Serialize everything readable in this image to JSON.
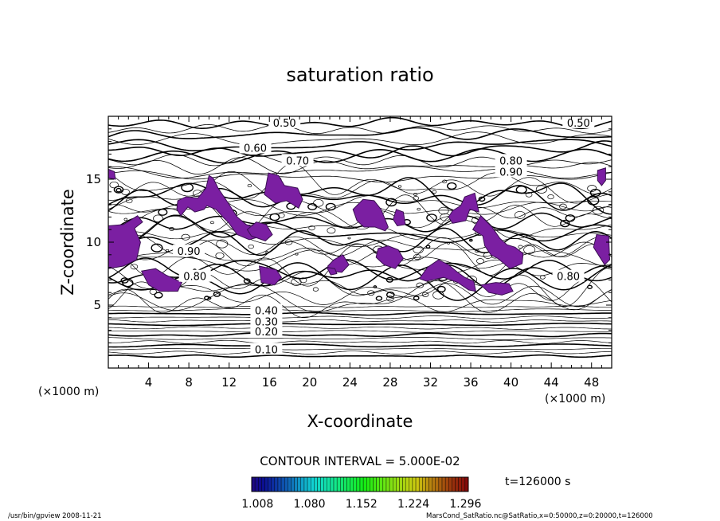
{
  "chart_data": {
    "type": "contour",
    "title": "saturation ratio",
    "xlabel": "X-coordinate",
    "ylabel": "Z-coordinate",
    "x_unit_label": "(×1000 m)",
    "y_unit_label": "(×1000 m)",
    "xlim": [
      0,
      50
    ],
    "ylim": [
      0,
      20
    ],
    "x_ticks": [
      4,
      8,
      12,
      16,
      20,
      24,
      28,
      32,
      36,
      40,
      44,
      48
    ],
    "y_ticks": [
      5,
      10,
      15
    ],
    "contour_interval_text": "CONTOUR INTERVAL = 5.000E-02",
    "time_label": "t=126000 s",
    "colorbar_ticks": [
      "1.008",
      "1.080",
      "1.152",
      "1.224",
      "1.296"
    ],
    "colorbar_range": [
      1.0,
      1.3
    ],
    "contour_labels": [
      {
        "text": "0.10",
        "x": 15.7,
        "z": 1.5
      },
      {
        "text": "0.20",
        "x": 15.7,
        "z": 2.9
      },
      {
        "text": "0.30",
        "x": 15.7,
        "z": 3.7
      },
      {
        "text": "0.40",
        "x": 15.7,
        "z": 4.6
      },
      {
        "text": "0.50",
        "x": 17.5,
        "z": 19.5
      },
      {
        "text": "0.50",
        "x": 46.7,
        "z": 19.5
      },
      {
        "text": "0.60",
        "x": 14.6,
        "z": 17.5
      },
      {
        "text": "0.70",
        "x": 18.8,
        "z": 16.5
      },
      {
        "text": "0.80",
        "x": 40.0,
        "z": 16.5
      },
      {
        "text": "0.90",
        "x": 40.0,
        "z": 15.6
      },
      {
        "text": "0.90",
        "x": 8.0,
        "z": 9.3
      },
      {
        "text": "0.80",
        "x": 8.6,
        "z": 7.3
      },
      {
        "text": "0.80",
        "x": 45.7,
        "z": 7.3
      }
    ],
    "supersaturated_regions": [
      {
        "x": [
          0.0,
          1.5,
          2.8,
          3.2,
          2.6,
          3.4,
          2.9,
          1.5,
          0.0
        ],
        "z": [
          7.9,
          8.1,
          8.6,
          10.0,
          11.1,
          11.6,
          12.1,
          11.4,
          11.3
        ]
      },
      {
        "x": [
          6.9,
          7.7,
          8.9,
          9.7,
          10.0,
          10.4,
          10.9,
          12.0,
          12.8,
          13.7,
          14.7,
          14.9,
          14.0,
          12.8,
          11.9,
          11.5,
          10.7,
          9.8,
          9.5,
          8.6,
          7.9,
          7.2,
          6.8
        ],
        "z": [
          13.3,
          13.6,
          13.5,
          14.3,
          15.3,
          15.1,
          14.3,
          13.0,
          12.0,
          11.4,
          11.1,
          10.4,
          10.2,
          10.6,
          11.6,
          11.9,
          12.6,
          12.9,
          12.6,
          12.4,
          12.8,
          12.1,
          12.6
        ]
      },
      {
        "x": [
          15.9,
          16.9,
          17.5,
          18.8,
          19.3,
          18.9,
          17.7,
          16.6,
          15.5
        ],
        "z": [
          15.5,
          15.3,
          14.5,
          14.3,
          13.4,
          12.7,
          13.3,
          13.1,
          13.8
        ]
      },
      {
        "x": [
          25.3,
          26.4,
          27.1,
          27.8,
          27.5,
          26.5,
          25.4,
          24.7,
          24.3,
          24.8
        ],
        "z": [
          13.4,
          13.3,
          12.6,
          11.2,
          10.9,
          11.2,
          11.2,
          11.7,
          12.6,
          13.0
        ]
      },
      {
        "x": [
          28.6,
          29.3,
          29.5,
          28.7,
          28.3
        ],
        "z": [
          12.6,
          12.4,
          11.4,
          11.3,
          11.8
        ]
      },
      {
        "x": [
          34.2,
          35.0,
          35.4,
          36.4,
          36.8,
          35.9,
          35.5,
          34.2,
          33.8
        ],
        "z": [
          12.5,
          12.9,
          13.6,
          13.9,
          12.4,
          12.6,
          11.7,
          11.5,
          12.0
        ]
      },
      {
        "x": [
          48.6,
          49.4,
          49.4,
          49.0,
          48.6
        ],
        "z": [
          15.7,
          15.9,
          14.9,
          14.5,
          14.9
        ]
      },
      {
        "x": [
          0.0,
          0.6,
          0.7,
          0.0
        ],
        "z": [
          15.8,
          15.6,
          15.0,
          15.1
        ]
      },
      {
        "x": [
          31.7,
          32.8,
          33.8,
          34.7,
          35.4,
          36.3,
          36.5,
          35.8,
          34.7,
          33.3,
          31.6,
          30.9
        ],
        "z": [
          8.0,
          8.6,
          8.2,
          7.6,
          7.2,
          6.9,
          6.1,
          6.2,
          6.8,
          7.2,
          6.9,
          7.1
        ]
      },
      {
        "x": [
          36.2,
          37.0,
          38.1,
          38.9,
          39.6,
          40.4,
          41.2,
          41.1,
          39.9,
          38.7,
          38.0,
          37.4,
          37.2
        ],
        "z": [
          11.0,
          12.1,
          11.2,
          10.3,
          9.8,
          9.6,
          9.1,
          8.3,
          7.9,
          8.7,
          9.0,
          9.7,
          10.5
        ]
      },
      {
        "x": [
          48.5,
          49.7,
          49.8,
          49.3,
          48.2
        ],
        "z": [
          10.6,
          10.5,
          8.6,
          8.2,
          9.6
        ]
      },
      {
        "x": [
          22.0,
          23.2,
          23.9,
          23.3,
          22.4,
          21.8
        ],
        "z": [
          7.7,
          7.6,
          8.2,
          9.0,
          8.6,
          8.1
        ]
      },
      {
        "x": [
          26.8,
          27.8,
          28.8,
          29.3,
          28.5,
          27.4,
          26.6
        ],
        "z": [
          9.5,
          9.7,
          9.4,
          8.7,
          7.9,
          8.2,
          8.8
        ]
      },
      {
        "x": [
          14.2,
          15.6,
          16.3,
          15.7,
          14.7,
          13.8
        ],
        "z": [
          10.5,
          10.1,
          10.6,
          11.4,
          11.6,
          11.0
        ]
      },
      {
        "x": [
          15.0,
          16.7,
          17.2,
          16.5,
          15.2
        ],
        "z": [
          8.1,
          7.8,
          7.2,
          6.6,
          6.8
        ]
      },
      {
        "x": [
          3.3,
          4.7,
          5.7,
          7.3,
          6.9,
          5.1,
          4.0
        ],
        "z": [
          7.7,
          7.9,
          7.4,
          6.8,
          6.1,
          6.1,
          6.6
        ]
      },
      {
        "x": [
          37.0,
          38.5,
          39.8,
          40.2,
          39.1,
          37.8
        ],
        "z": [
          6.6,
          6.8,
          6.7,
          6.1,
          5.8,
          6.0
        ]
      },
      {
        "x": [
          21.7,
          22.5,
          22.7,
          22.1
        ],
        "z": [
          8.0,
          7.9,
          7.5,
          7.4
        ]
      }
    ],
    "colors": {
      "region": "#7b1fa2",
      "region_outline": "#3a0f52",
      "patch": "#5a4ab8"
    }
  },
  "footer": {
    "left": "/usr/bin/gpview  2008-11-21",
    "right": "MarsCond_SatRatio.nc@SatRatio,x=0:50000,z=0:20000,t=126000"
  }
}
